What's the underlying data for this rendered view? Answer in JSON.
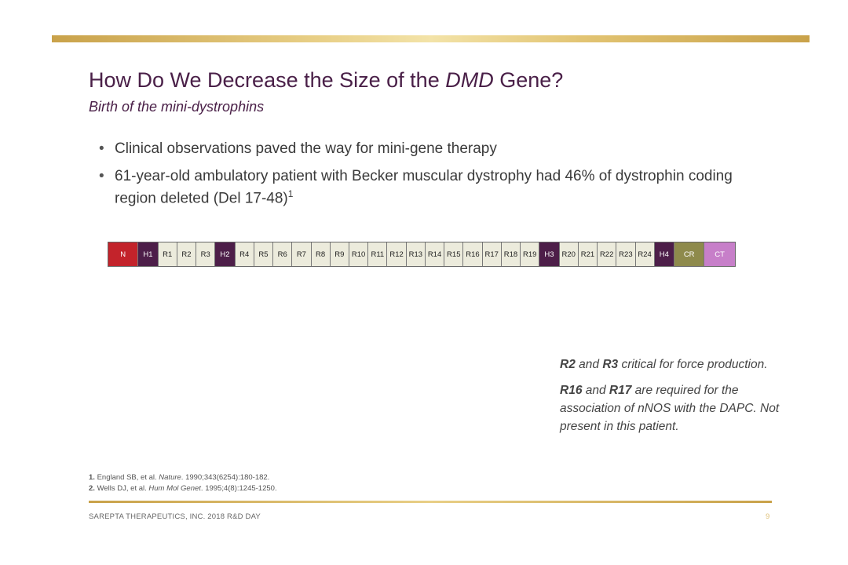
{
  "slide": {
    "title_before": "How Do We Decrease the Size of the ",
    "title_italic": "DMD",
    "title_after": " Gene?",
    "subtitle": "Birth of the mini-dystrophins"
  },
  "bullets": [
    {
      "text": "Clinical observations paved the way for mini-gene therapy",
      "sup": ""
    },
    {
      "text": "61-year-old ambulatory patient with Becker muscular dystrophy had 46% of dystrophin coding region deleted (Del 17-48)",
      "sup": "1"
    }
  ],
  "gene_segments": [
    {
      "label": "N",
      "bg": "#c3232b",
      "fg": "#ffffff",
      "w": 38
    },
    {
      "label": "H1",
      "bg": "#4d1e49",
      "fg": "#ffffff",
      "w": 25
    },
    {
      "label": "R1",
      "bg": "#ecebdc",
      "fg": "#222222",
      "w": 24
    },
    {
      "label": "R2",
      "bg": "#ecebdc",
      "fg": "#222222",
      "w": 24
    },
    {
      "label": "R3",
      "bg": "#ecebdc",
      "fg": "#222222",
      "w": 24
    },
    {
      "label": "H2",
      "bg": "#4d1e49",
      "fg": "#ffffff",
      "w": 25
    },
    {
      "label": "R4",
      "bg": "#ecebdc",
      "fg": "#222222",
      "w": 24
    },
    {
      "label": "R5",
      "bg": "#ecebdc",
      "fg": "#222222",
      "w": 24
    },
    {
      "label": "R6",
      "bg": "#ecebdc",
      "fg": "#222222",
      "w": 24
    },
    {
      "label": "R7",
      "bg": "#ecebdc",
      "fg": "#222222",
      "w": 24
    },
    {
      "label": "R8",
      "bg": "#ecebdc",
      "fg": "#222222",
      "w": 24
    },
    {
      "label": "R9",
      "bg": "#ecebdc",
      "fg": "#222222",
      "w": 24
    },
    {
      "label": "R10",
      "bg": "#ecebdc",
      "fg": "#222222",
      "w": 24
    },
    {
      "label": "R11",
      "bg": "#ecebdc",
      "fg": "#222222",
      "w": 24
    },
    {
      "label": "R12",
      "bg": "#ecebdc",
      "fg": "#222222",
      "w": 24
    },
    {
      "label": "R13",
      "bg": "#ecebdc",
      "fg": "#222222",
      "w": 24
    },
    {
      "label": "R14",
      "bg": "#ecebdc",
      "fg": "#222222",
      "w": 24
    },
    {
      "label": "R15",
      "bg": "#ecebdc",
      "fg": "#222222",
      "w": 24
    },
    {
      "label": "R16",
      "bg": "#ecebdc",
      "fg": "#222222",
      "w": 24
    },
    {
      "label": "R17",
      "bg": "#ecebdc",
      "fg": "#222222",
      "w": 24
    },
    {
      "label": "R18",
      "bg": "#ecebdc",
      "fg": "#222222",
      "w": 24
    },
    {
      "label": "R19",
      "bg": "#ecebdc",
      "fg": "#222222",
      "w": 24
    },
    {
      "label": "H3",
      "bg": "#4d1e49",
      "fg": "#ffffff",
      "w": 25
    },
    {
      "label": "R20",
      "bg": "#ecebdc",
      "fg": "#222222",
      "w": 24
    },
    {
      "label": "R21",
      "bg": "#ecebdc",
      "fg": "#222222",
      "w": 24
    },
    {
      "label": "R22",
      "bg": "#ecebdc",
      "fg": "#222222",
      "w": 24
    },
    {
      "label": "R23",
      "bg": "#ecebdc",
      "fg": "#222222",
      "w": 24
    },
    {
      "label": "R24",
      "bg": "#ecebdc",
      "fg": "#222222",
      "w": 24
    },
    {
      "label": "H4",
      "bg": "#4d1e49",
      "fg": "#ffffff",
      "w": 25
    },
    {
      "label": "CR",
      "bg": "#8e8a4c",
      "fg": "#ffffff",
      "w": 38
    },
    {
      "label": "CT",
      "bg": "#c77fc9",
      "fg": "#ffffff",
      "w": 38
    }
  ],
  "notes": [
    {
      "parts": [
        {
          "b": "R2"
        },
        {
          "t": " and "
        },
        {
          "b": "R3"
        },
        {
          "t": " critical for force production."
        }
      ]
    },
    {
      "parts": [
        {
          "b": "R16"
        },
        {
          "t": " and "
        },
        {
          "b": "R17"
        },
        {
          "t": " are required for the association of nNOS with the DAPC. Not present in this patient."
        }
      ]
    }
  ],
  "references": [
    {
      "num": "1.",
      "pre": " England SB, et al. ",
      "journal": "Nature",
      "post": ". 1990;343(6254):180-182."
    },
    {
      "num": "2.",
      "pre": " Wells DJ, et al. ",
      "journal": "Hum Mol Genet",
      "post": ". 1995;4(8):1245-1250."
    }
  ],
  "footer": {
    "text": "SAREPTA THERAPEUTICS, INC. 2018 R&D DAY",
    "page": "9"
  }
}
